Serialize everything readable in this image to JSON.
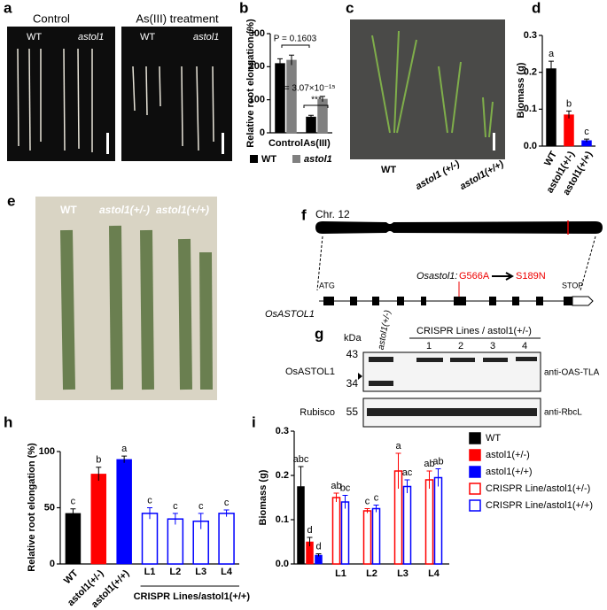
{
  "panel_a": {
    "label": "a",
    "control": "Control",
    "treatment": "As(III) treatment",
    "wt": "WT",
    "mutant": "astol1"
  },
  "panel_c": {
    "label": "c",
    "captions": [
      "WT",
      "astol1 (+/-)",
      "astol1(+/+)"
    ]
  },
  "panel_e": {
    "label": "e",
    "captions": [
      "WT",
      "astol1(+/-)",
      "astol1(+/+)"
    ]
  },
  "panel_f": {
    "label": "f",
    "chromosome": "Chr. 12",
    "start": "ATG",
    "stop": "STOP",
    "gene": "OsASTOL1",
    "allele": "Osastol1:",
    "nt_change": "G566A",
    "aa_change": "S189N"
  },
  "panel_g": {
    "label": "g",
    "unit": "kDa",
    "lane": "astol1(+/-)",
    "group": "CRISPR Lines / astol1(+/-)",
    "line_numbers": [
      "1",
      "2",
      "3",
      "4"
    ],
    "markers": [
      "43",
      "34",
      "55"
    ],
    "rows": [
      "OsASTOL1",
      "Rubisco"
    ],
    "antibodies": [
      "anti-OAS-TLA",
      "anti-RbcL"
    ]
  },
  "chart_data": [
    {
      "type": "bar",
      "panel_label": "b",
      "y_label": "Relative root elongation (%)",
      "categories": [
        "Control",
        "As(III)"
      ],
      "series": [
        {
          "name": "WT",
          "color": "#000000",
          "values": [
            210,
            48
          ],
          "errors": [
            14,
            5
          ]
        },
        {
          "name": "astol1",
          "color": "#808080",
          "values": [
            220,
            102
          ],
          "errors": [
            15,
            8
          ]
        }
      ],
      "ylim": [
        0,
        300
      ],
      "yticks": [
        0,
        100,
        200,
        300
      ],
      "legend": "bottom",
      "annotations": [
        "P = 0.1603",
        "P = 3.07×10⁻¹⁵",
        "***"
      ]
    },
    {
      "type": "bar",
      "panel_label": "d",
      "y_label": "Biomass (g)",
      "categories": [
        "WT",
        "astol1(+/-)",
        "astol1(+/+)"
      ],
      "series": [
        {
          "values": [
            0.21,
            0.085,
            0.015
          ],
          "errors": [
            0.02,
            0.01,
            0.004
          ],
          "colors": [
            "#000000",
            "#ff0000",
            "#0000ff"
          ],
          "letters": [
            "a",
            "b",
            "c"
          ]
        }
      ],
      "ylim": [
        0,
        0.3
      ],
      "yticks": [
        {
          "value": 0,
          "label": "0.0"
        },
        0.1,
        0.2,
        0.3
      ]
    },
    {
      "type": "bar",
      "panel_label": "h",
      "y_label": "Relative root elongation (%)",
      "categories": [
        "WT",
        "astol1(+/-)",
        "astol1(+/+)",
        "L1",
        "L2",
        "L3",
        "L4"
      ],
      "series": [
        {
          "values": [
            45,
            80,
            93,
            45,
            40,
            38,
            45
          ],
          "errors": [
            4,
            6,
            3,
            5,
            5,
            7,
            3
          ],
          "colors": [
            "#000000",
            "#ff0000",
            "#0000ff",
            "#0000ff",
            "#0000ff",
            "#0000ff",
            "#0000ff"
          ],
          "hollow": [
            false,
            false,
            false,
            true,
            true,
            true,
            true
          ],
          "letters": [
            "c",
            "b",
            "a",
            "c",
            "c",
            "c",
            "c"
          ]
        }
      ],
      "ylim": [
        0,
        100
      ],
      "yticks": [
        0,
        50,
        100
      ],
      "group_label": "CRISPR Lines/astol1(+/+)"
    },
    {
      "type": "bar",
      "panel_label": "i",
      "y_label": "Biomass (g)",
      "categories": [
        null,
        "L1",
        "L2",
        "L3",
        "L4"
      ],
      "series": [
        {
          "name": "WT",
          "color": "#000000",
          "values": [
            0.175,
            null,
            null,
            null,
            null
          ],
          "errors": [
            0.045,
            null,
            null,
            null,
            null
          ],
          "letters": [
            "abc",
            null,
            null,
            null,
            null
          ]
        },
        {
          "name": "astol1(+/-)",
          "color": "#ff0000",
          "values": [
            0.05,
            null,
            null,
            null,
            null
          ],
          "errors": [
            0.01,
            null,
            null,
            null,
            null
          ],
          "letters": [
            "d",
            null,
            null,
            null,
            null
          ]
        },
        {
          "name": "astol1(+/+)",
          "color": "#0000ff",
          "values": [
            0.02,
            null,
            null,
            null,
            null
          ],
          "errors": [
            0.003,
            null,
            null,
            null,
            null
          ],
          "letters": [
            "d",
            null,
            null,
            null,
            null
          ]
        },
        {
          "name": "CRISPR Line/astol1(+/-)",
          "color": "#ff0000",
          "hollow": true,
          "values": [
            null,
            0.15,
            0.12,
            0.21,
            0.19
          ],
          "errors": [
            null,
            0.01,
            0.005,
            0.04,
            0.02
          ],
          "letters": [
            null,
            "ab",
            "c",
            "a",
            "ab"
          ]
        },
        {
          "name": "CRISPR Line/astol1(+/+)",
          "color": "#0000ff",
          "hollow": true,
          "values": [
            null,
            0.14,
            0.125,
            0.175,
            0.195
          ],
          "errors": [
            null,
            0.015,
            0.008,
            0.015,
            0.02
          ],
          "letters": [
            null,
            "bc",
            "c",
            "ac",
            "ab"
          ]
        }
      ],
      "ylim": [
        0,
        0.3
      ],
      "yticks": [
        {
          "value": 0,
          "label": "0.0"
        },
        0.1,
        0.2,
        0.3
      ],
      "legend": "right"
    }
  ]
}
